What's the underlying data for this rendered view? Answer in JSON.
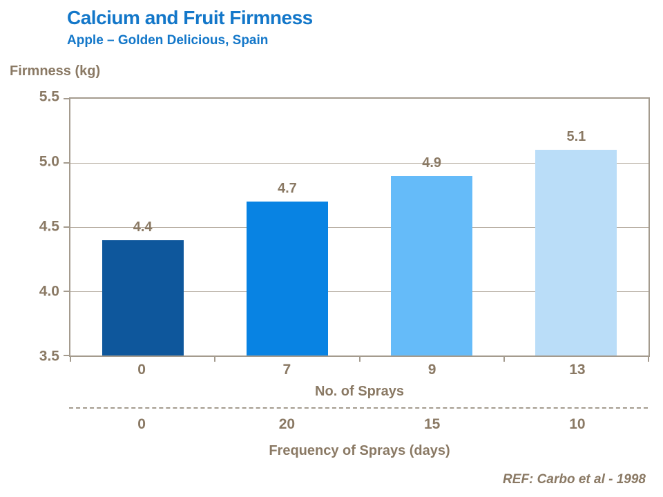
{
  "header": {
    "title": "Calcium and Fruit Firmness",
    "subtitle": "Apple – Golden Delicious, Spain"
  },
  "colors": {
    "title_blue": "#1377C9",
    "text_brown": "#8A7964",
    "axis_line": "#A49B8E",
    "gridline": "#B5ACA0",
    "bars": [
      "#0E579C",
      "#0883E3",
      "#65BBF9",
      "#BADDF8"
    ]
  },
  "chart_data": {
    "type": "bar",
    "title": "Calcium and Fruit Firmness",
    "subtitle": "Apple – Golden Delicious, Spain",
    "ylabel": "Firmness (kg)",
    "xlabel": "No. of Sprays",
    "ylim": [
      3.5,
      5.5
    ],
    "yticks": [
      "5.5",
      "5.0",
      "4.5",
      "4.0",
      "3.5"
    ],
    "categories": [
      "0",
      "7",
      "9",
      "13"
    ],
    "values": [
      4.4,
      4.7,
      4.9,
      5.1
    ],
    "value_labels": [
      "4.4",
      "4.7",
      "4.9",
      "5.1"
    ],
    "secondary_axis": {
      "label": "Frequency of Sprays (days)",
      "values": [
        "0",
        "20",
        "15",
        "10"
      ]
    },
    "reference": "REF: Carbo et al - 1998",
    "grid": true,
    "legend": "none"
  }
}
